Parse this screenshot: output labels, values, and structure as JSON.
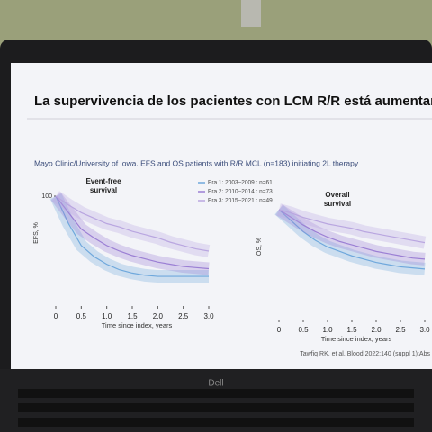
{
  "slide": {
    "title": "La supervivencia de los pacientes con LCM R/R está aumentando",
    "subtitle": "Mayo Clinic/University of Iowa. EFS and OS patients with R/R MCL (n=183) initiating 2L therapy",
    "citation": "Tawfiq RK, et al. Blood 2022;140 (suppl 1):Abs"
  },
  "laptop": {
    "brand": "Dell"
  },
  "chart_data": [
    {
      "type": "line",
      "title": "Event-free survival",
      "ylabel": "EFS, %",
      "xlabel": "Time since index, years",
      "x": [
        0,
        0.25,
        0.5,
        0.75,
        1.0,
        1.25,
        1.5,
        1.75,
        2.0,
        2.25,
        2.5,
        2.75,
        3.0
      ],
      "xlim": [
        0,
        3.2
      ],
      "xticks": [
        0,
        {
          "value": 0.5,
          "label": "0.5"
        },
        {
          "value": 1,
          "label": "1.0"
        },
        {
          "value": 1.5,
          "label": "1.5"
        },
        {
          "value": 2,
          "label": "2.0"
        },
        {
          "value": 2.5,
          "label": "2.5"
        },
        {
          "value": 3,
          "label": "3.0"
        }
      ],
      "ylim": [
        0,
        100
      ],
      "yticks": [
        100
      ],
      "series": [
        {
          "name": "Era 1: 2003–2009 : n=61",
          "color": "#6fa8dc",
          "values": [
            100,
            75,
            55,
            45,
            38,
            33,
            30,
            28,
            27,
            27,
            27,
            27,
            27
          ]
        },
        {
          "name": "Era 2: 2010–2014 : n=73",
          "color": "#9b7fd4",
          "values": [
            100,
            85,
            70,
            62,
            55,
            50,
            46,
            43,
            40,
            38,
            36,
            35,
            34
          ]
        },
        {
          "name": "Era 3: 2015–2021 : n=49",
          "color": "#b9a6e0",
          "values": [
            100,
            92,
            85,
            80,
            75,
            72,
            68,
            65,
            62,
            58,
            55,
            52,
            50
          ]
        }
      ]
    },
    {
      "type": "line",
      "title": "Overall survival",
      "ylabel": "OS, %",
      "xlabel": "Time since index, years",
      "x": [
        0,
        0.25,
        0.5,
        0.75,
        1.0,
        1.25,
        1.5,
        1.75,
        2.0,
        2.25,
        2.5,
        2.75,
        3.0
      ],
      "xlim": [
        0,
        3.2
      ],
      "xticks": [
        0,
        {
          "value": 0.5,
          "label": "0.5"
        },
        {
          "value": 1,
          "label": "1.0"
        },
        {
          "value": 1.5,
          "label": "1.5"
        },
        {
          "value": 2,
          "label": "2.0"
        },
        {
          "value": 2.5,
          "label": "2.5"
        },
        {
          "value": 3,
          "label": "3.0"
        }
      ],
      "ylim": [
        0,
        100
      ],
      "series": [
        {
          "color": "#6fa8dc",
          "values": [
            100,
            90,
            80,
            72,
            66,
            62,
            58,
            55,
            52,
            50,
            48,
            47,
            46
          ]
        },
        {
          "color": "#9b7fd4",
          "values": [
            100,
            93,
            86,
            80,
            75,
            71,
            68,
            65,
            62,
            60,
            58,
            56,
            55
          ]
        },
        {
          "color": "#b9a6e0",
          "values": [
            100,
            97,
            93,
            90,
            87,
            85,
            83,
            80,
            78,
            76,
            74,
            72,
            70
          ]
        }
      ]
    }
  ]
}
